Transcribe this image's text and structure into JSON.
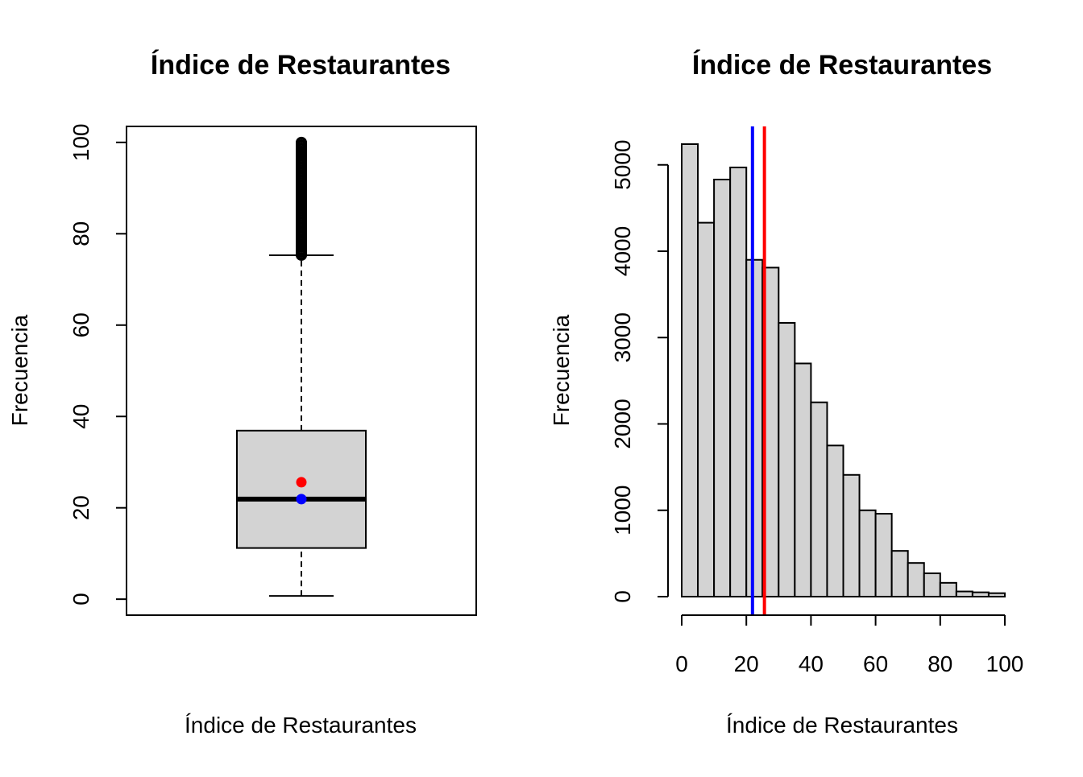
{
  "chart_data": [
    {
      "type": "boxplot",
      "title": "Índice de Restaurantes",
      "xlabel": "Índice de Restaurantes",
      "ylabel": "Frecuencia",
      "ylim": [
        -3.5,
        103.5
      ],
      "yticks": [
        0,
        20,
        40,
        60,
        80,
        100
      ],
      "stats": {
        "lower_whisker": 0.7,
        "q1": 11.2,
        "median": 21.9,
        "q3": 36.9,
        "upper_whisker": 75.3
      },
      "outliers_range": [
        75.3,
        100
      ],
      "outlier_samples": [
        75.5,
        76.5,
        77.5,
        78.5,
        79.5,
        80.5,
        81.5,
        82.5,
        83.5,
        84.5,
        85.5,
        86.5,
        87.5,
        88.5,
        89.5,
        90.5,
        91.5,
        92.5,
        93.5,
        94.5,
        95.5,
        96.5,
        97.2,
        98,
        98.6,
        99.3,
        100
      ],
      "points": [
        {
          "value": 25.6,
          "color": "#ff0000"
        },
        {
          "value": 21.9,
          "color": "#0000ff"
        }
      ],
      "box_fill": "#d3d3d3"
    },
    {
      "type": "histogram",
      "title": "Índice de Restaurantes",
      "xlabel": "Índice de Restaurantes",
      "ylabel": "Frecuencia",
      "xlim": [
        0,
        100
      ],
      "ylim": [
        0,
        5240
      ],
      "xticks": [
        0,
        20,
        40,
        60,
        80,
        100
      ],
      "yticks": [
        0,
        1000,
        2000,
        3000,
        4000,
        5000
      ],
      "bin_width": 5,
      "bins": [
        0,
        5,
        10,
        15,
        20,
        25,
        30,
        35,
        40,
        45,
        50,
        55,
        60,
        65,
        70,
        75,
        80,
        85,
        90,
        95,
        100
      ],
      "counts": [
        5240,
        4330,
        4830,
        4970,
        3900,
        3810,
        3170,
        2700,
        2250,
        1750,
        1410,
        1000,
        960,
        530,
        390,
        270,
        160,
        60,
        50,
        40
      ],
      "vlines": [
        {
          "value": 21.9,
          "color": "#0000ff"
        },
        {
          "value": 25.6,
          "color": "#ff0000"
        }
      ],
      "bar_fill": "#d3d3d3"
    }
  ]
}
